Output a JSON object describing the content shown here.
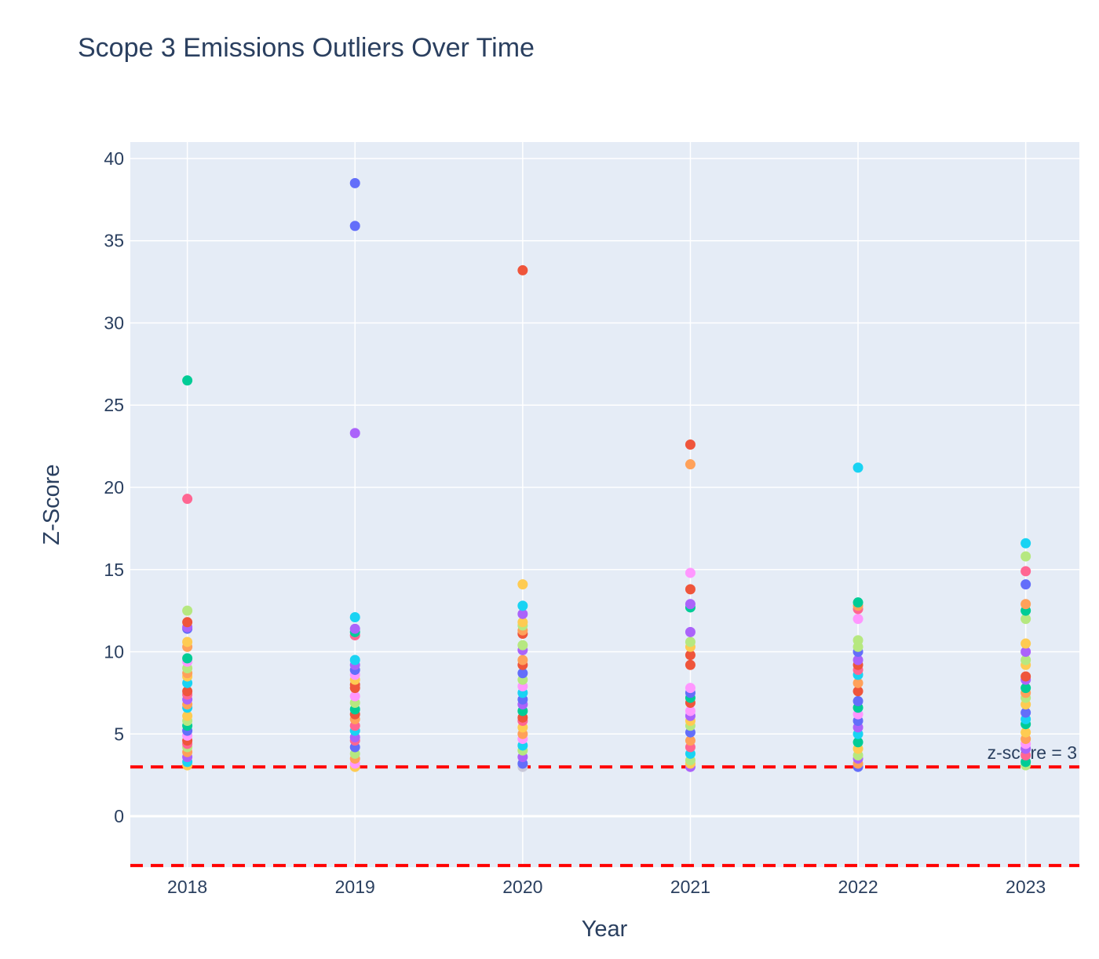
{
  "chart_data": {
    "type": "scatter",
    "title": "Scope 3 Emissions Outliers Over Time",
    "xlabel": "Year",
    "ylabel": "Z-Score",
    "x_categories": [
      "2018",
      "2019",
      "2020",
      "2021",
      "2022",
      "2023"
    ],
    "xlim": [
      2017.66,
      2023.32
    ],
    "ylim": [
      -3.1,
      41.0
    ],
    "y_ticks": [
      0,
      5,
      10,
      15,
      20,
      25,
      30,
      35,
      40
    ],
    "grid": true,
    "legend": "none",
    "plot_bg": "#e5ecf6",
    "grid_color": "#ffffff",
    "threshold_lines": [
      {
        "y": 3,
        "color": "#ff0000",
        "style": "dashed",
        "label": "z-score = 3"
      },
      {
        "y": -3,
        "color": "#ff0000",
        "style": "dashed",
        "label": ""
      }
    ],
    "palette": [
      "#636efa",
      "#EF553B",
      "#00cc96",
      "#ab63fa",
      "#FFA15A",
      "#19d3f3",
      "#FF6692",
      "#B6E880",
      "#FF97FF",
      "#FECB52"
    ],
    "points": [
      {
        "x": 2018,
        "y": 26.5,
        "c": "#00cc96"
      },
      {
        "x": 2018,
        "y": 19.3,
        "c": "#FF6692"
      },
      {
        "x": 2018,
        "y": 12.5,
        "c": "#B6E880"
      },
      {
        "x": 2018,
        "y": 11.8,
        "c": "#EF553B"
      },
      {
        "x": 2018,
        "y": 11.5,
        "c": "#ab63fa"
      },
      {
        "x": 2018,
        "y": 11.4,
        "c": "#636efa"
      },
      {
        "x": 2018,
        "y": 10.6,
        "c": "#FECB52"
      },
      {
        "x": 2018,
        "y": 10.3,
        "c": "#FFA15A"
      },
      {
        "x": 2018,
        "y": 9.6,
        "c": "#00cc96"
      },
      {
        "x": 2018,
        "y": 9.4,
        "c": "#FF97FF"
      },
      {
        "x": 2018,
        "y": 9.0,
        "c": "#B6E880"
      },
      {
        "x": 2018,
        "y": 8.7,
        "c": "#FFA15A"
      },
      {
        "x": 2018,
        "y": 8.5,
        "c": "#FECB52"
      },
      {
        "x": 2018,
        "y": 8.1,
        "c": "#19d3f3"
      },
      {
        "x": 2018,
        "y": 7.6,
        "c": "#EF553B"
      },
      {
        "x": 2018,
        "y": 7.4,
        "c": "#FF6692"
      },
      {
        "x": 2018,
        "y": 7.1,
        "c": "#ab63fa"
      },
      {
        "x": 2018,
        "y": 6.8,
        "c": "#FFA15A"
      },
      {
        "x": 2018,
        "y": 6.6,
        "c": "#19d3f3"
      },
      {
        "x": 2018,
        "y": 6.1,
        "c": "#FECB52"
      },
      {
        "x": 2018,
        "y": 5.8,
        "c": "#B6E880"
      },
      {
        "x": 2018,
        "y": 5.5,
        "c": "#00cc96"
      },
      {
        "x": 2018,
        "y": 5.2,
        "c": "#636efa"
      },
      {
        "x": 2018,
        "y": 4.9,
        "c": "#FF97FF"
      },
      {
        "x": 2018,
        "y": 4.6,
        "c": "#EF553B"
      },
      {
        "x": 2018,
        "y": 4.4,
        "c": "#FF6692"
      },
      {
        "x": 2018,
        "y": 4.2,
        "c": "#B6E880"
      },
      {
        "x": 2018,
        "y": 3.9,
        "c": "#FFA15A"
      },
      {
        "x": 2018,
        "y": 3.6,
        "c": "#ab63fa"
      },
      {
        "x": 2018,
        "y": 3.3,
        "c": "#19d3f3"
      },
      {
        "x": 2018,
        "y": 3.1,
        "c": "#FECB52"
      },
      {
        "x": 2019,
        "y": 38.5,
        "c": "#636efa"
      },
      {
        "x": 2019,
        "y": 35.9,
        "c": "#636efa"
      },
      {
        "x": 2019,
        "y": 23.3,
        "c": "#ab63fa"
      },
      {
        "x": 2019,
        "y": 12.1,
        "c": "#19d3f3"
      },
      {
        "x": 2019,
        "y": 11.4,
        "c": "#ab63fa"
      },
      {
        "x": 2019,
        "y": 11.2,
        "c": "#00cc96"
      },
      {
        "x": 2019,
        "y": 11.0,
        "c": "#FF6692"
      },
      {
        "x": 2019,
        "y": 9.5,
        "c": "#19d3f3"
      },
      {
        "x": 2019,
        "y": 9.2,
        "c": "#ab63fa"
      },
      {
        "x": 2019,
        "y": 8.9,
        "c": "#636efa"
      },
      {
        "x": 2019,
        "y": 8.6,
        "c": "#FF97FF"
      },
      {
        "x": 2019,
        "y": 8.3,
        "c": "#FECB52"
      },
      {
        "x": 2019,
        "y": 8.0,
        "c": "#EF553B"
      },
      {
        "x": 2019,
        "y": 7.8,
        "c": "#EF553B"
      },
      {
        "x": 2019,
        "y": 7.3,
        "c": "#FF97FF"
      },
      {
        "x": 2019,
        "y": 6.9,
        "c": "#B6E880"
      },
      {
        "x": 2019,
        "y": 6.5,
        "c": "#00cc96"
      },
      {
        "x": 2019,
        "y": 6.2,
        "c": "#EF553B"
      },
      {
        "x": 2019,
        "y": 5.9,
        "c": "#FFA15A"
      },
      {
        "x": 2019,
        "y": 5.5,
        "c": "#FF6692"
      },
      {
        "x": 2019,
        "y": 5.2,
        "c": "#19d3f3"
      },
      {
        "x": 2019,
        "y": 4.8,
        "c": "#ab63fa"
      },
      {
        "x": 2019,
        "y": 4.6,
        "c": "#FF6692"
      },
      {
        "x": 2019,
        "y": 4.2,
        "c": "#636efa"
      },
      {
        "x": 2019,
        "y": 3.8,
        "c": "#B6E880"
      },
      {
        "x": 2019,
        "y": 3.5,
        "c": "#FFA15A"
      },
      {
        "x": 2019,
        "y": 3.2,
        "c": "#FF97FF"
      },
      {
        "x": 2019,
        "y": 3.0,
        "c": "#FECB52"
      },
      {
        "x": 2020,
        "y": 33.2,
        "c": "#EF553B"
      },
      {
        "x": 2020,
        "y": 14.1,
        "c": "#FECB52"
      },
      {
        "x": 2020,
        "y": 12.8,
        "c": "#19d3f3"
      },
      {
        "x": 2020,
        "y": 12.3,
        "c": "#ab63fa"
      },
      {
        "x": 2020,
        "y": 11.8,
        "c": "#FECB52"
      },
      {
        "x": 2020,
        "y": 11.6,
        "c": "#B6E880"
      },
      {
        "x": 2020,
        "y": 11.3,
        "c": "#FFA15A"
      },
      {
        "x": 2020,
        "y": 11.1,
        "c": "#EF553B"
      },
      {
        "x": 2020,
        "y": 10.4,
        "c": "#B6E880"
      },
      {
        "x": 2020,
        "y": 10.1,
        "c": "#ab63fa"
      },
      {
        "x": 2020,
        "y": 9.5,
        "c": "#FFA15A"
      },
      {
        "x": 2020,
        "y": 9.2,
        "c": "#EF553B"
      },
      {
        "x": 2020,
        "y": 8.7,
        "c": "#636efa"
      },
      {
        "x": 2020,
        "y": 8.3,
        "c": "#B6E880"
      },
      {
        "x": 2020,
        "y": 7.9,
        "c": "#FF97FF"
      },
      {
        "x": 2020,
        "y": 7.5,
        "c": "#19d3f3"
      },
      {
        "x": 2020,
        "y": 7.1,
        "c": "#636efa"
      },
      {
        "x": 2020,
        "y": 6.8,
        "c": "#ab63fa"
      },
      {
        "x": 2020,
        "y": 6.4,
        "c": "#00cc96"
      },
      {
        "x": 2020,
        "y": 6.0,
        "c": "#EF553B"
      },
      {
        "x": 2020,
        "y": 5.8,
        "c": "#FF6692"
      },
      {
        "x": 2020,
        "y": 5.4,
        "c": "#FECB52"
      },
      {
        "x": 2020,
        "y": 5.0,
        "c": "#FFA15A"
      },
      {
        "x": 2020,
        "y": 4.7,
        "c": "#FF97FF"
      },
      {
        "x": 2020,
        "y": 4.3,
        "c": "#19d3f3"
      },
      {
        "x": 2020,
        "y": 4.0,
        "c": "#B6E880"
      },
      {
        "x": 2020,
        "y": 3.6,
        "c": "#ab63fa"
      },
      {
        "x": 2020,
        "y": 3.2,
        "c": "#636efa"
      },
      {
        "x": 2020,
        "y": 3.0,
        "c": "#c8c8d8"
      },
      {
        "x": 2021,
        "y": 22.6,
        "c": "#EF553B"
      },
      {
        "x": 2021,
        "y": 21.4,
        "c": "#FFA15A"
      },
      {
        "x": 2021,
        "y": 14.8,
        "c": "#FF97FF"
      },
      {
        "x": 2021,
        "y": 13.8,
        "c": "#EF553B"
      },
      {
        "x": 2021,
        "y": 12.9,
        "c": "#ab63fa"
      },
      {
        "x": 2021,
        "y": 12.7,
        "c": "#00cc96"
      },
      {
        "x": 2021,
        "y": 11.2,
        "c": "#ab63fa"
      },
      {
        "x": 2021,
        "y": 10.6,
        "c": "#B6E880"
      },
      {
        "x": 2021,
        "y": 10.3,
        "c": "#FECB52"
      },
      {
        "x": 2021,
        "y": 9.8,
        "c": "#EF553B"
      },
      {
        "x": 2021,
        "y": 9.2,
        "c": "#EF553B"
      },
      {
        "x": 2021,
        "y": 7.8,
        "c": "#FF97FF"
      },
      {
        "x": 2021,
        "y": 7.5,
        "c": "#636efa"
      },
      {
        "x": 2021,
        "y": 7.2,
        "c": "#00cc96"
      },
      {
        "x": 2021,
        "y": 6.9,
        "c": "#EF553B"
      },
      {
        "x": 2021,
        "y": 6.4,
        "c": "#FF97FF"
      },
      {
        "x": 2021,
        "y": 6.1,
        "c": "#ab63fa"
      },
      {
        "x": 2021,
        "y": 5.8,
        "c": "#FECB52"
      },
      {
        "x": 2021,
        "y": 5.5,
        "c": "#B6E880"
      },
      {
        "x": 2021,
        "y": 5.1,
        "c": "#636efa"
      },
      {
        "x": 2021,
        "y": 4.6,
        "c": "#FFA15A"
      },
      {
        "x": 2021,
        "y": 4.2,
        "c": "#FF6692"
      },
      {
        "x": 2021,
        "y": 3.8,
        "c": "#19d3f3"
      },
      {
        "x": 2021,
        "y": 3.4,
        "c": "#B6E880"
      },
      {
        "x": 2021,
        "y": 3.2,
        "c": "#FECB52"
      },
      {
        "x": 2021,
        "y": 3.0,
        "c": "#ab63fa"
      },
      {
        "x": 2022,
        "y": 21.2,
        "c": "#19d3f3"
      },
      {
        "x": 2022,
        "y": 13.0,
        "c": "#00cc96"
      },
      {
        "x": 2022,
        "y": 12.8,
        "c": "#FFA15A"
      },
      {
        "x": 2022,
        "y": 12.6,
        "c": "#FF6692"
      },
      {
        "x": 2022,
        "y": 12.0,
        "c": "#FF97FF"
      },
      {
        "x": 2022,
        "y": 10.7,
        "c": "#B6E880"
      },
      {
        "x": 2022,
        "y": 10.3,
        "c": "#B6E880"
      },
      {
        "x": 2022,
        "y": 10.0,
        "c": "#636efa"
      },
      {
        "x": 2022,
        "y": 9.5,
        "c": "#ab63fa"
      },
      {
        "x": 2022,
        "y": 9.2,
        "c": "#EF553B"
      },
      {
        "x": 2022,
        "y": 8.9,
        "c": "#FF6692"
      },
      {
        "x": 2022,
        "y": 8.6,
        "c": "#19d3f3"
      },
      {
        "x": 2022,
        "y": 8.1,
        "c": "#FFA15A"
      },
      {
        "x": 2022,
        "y": 7.6,
        "c": "#EF553B"
      },
      {
        "x": 2022,
        "y": 7.0,
        "c": "#636efa"
      },
      {
        "x": 2022,
        "y": 6.6,
        "c": "#00cc96"
      },
      {
        "x": 2022,
        "y": 6.2,
        "c": "#FF97FF"
      },
      {
        "x": 2022,
        "y": 5.8,
        "c": "#636efa"
      },
      {
        "x": 2022,
        "y": 5.4,
        "c": "#ab63fa"
      },
      {
        "x": 2022,
        "y": 5.0,
        "c": "#19d3f3"
      },
      {
        "x": 2022,
        "y": 4.5,
        "c": "#00cc96"
      },
      {
        "x": 2022,
        "y": 4.1,
        "c": "#FECB52"
      },
      {
        "x": 2022,
        "y": 3.7,
        "c": "#B6E880"
      },
      {
        "x": 2022,
        "y": 3.5,
        "c": "#ab63fa"
      },
      {
        "x": 2022,
        "y": 3.2,
        "c": "#FFA15A"
      },
      {
        "x": 2022,
        "y": 3.0,
        "c": "#636efa"
      },
      {
        "x": 2023,
        "y": 16.6,
        "c": "#19d3f3"
      },
      {
        "x": 2023,
        "y": 15.8,
        "c": "#B6E880"
      },
      {
        "x": 2023,
        "y": 14.9,
        "c": "#FF6692"
      },
      {
        "x": 2023,
        "y": 14.1,
        "c": "#636efa"
      },
      {
        "x": 2023,
        "y": 12.9,
        "c": "#FFA15A"
      },
      {
        "x": 2023,
        "y": 12.5,
        "c": "#00cc96"
      },
      {
        "x": 2023,
        "y": 12.0,
        "c": "#B6E880"
      },
      {
        "x": 2023,
        "y": 10.5,
        "c": "#FECB52"
      },
      {
        "x": 2023,
        "y": 10.0,
        "c": "#ab63fa"
      },
      {
        "x": 2023,
        "y": 9.5,
        "c": "#B6E880"
      },
      {
        "x": 2023,
        "y": 9.2,
        "c": "#FECB52"
      },
      {
        "x": 2023,
        "y": 8.5,
        "c": "#EF553B"
      },
      {
        "x": 2023,
        "y": 8.3,
        "c": "#ab63fa"
      },
      {
        "x": 2023,
        "y": 7.8,
        "c": "#00cc96"
      },
      {
        "x": 2023,
        "y": 7.5,
        "c": "#FFA15A"
      },
      {
        "x": 2023,
        "y": 7.2,
        "c": "#B6E880"
      },
      {
        "x": 2023,
        "y": 6.8,
        "c": "#FECB52"
      },
      {
        "x": 2023,
        "y": 6.3,
        "c": "#636efa"
      },
      {
        "x": 2023,
        "y": 5.9,
        "c": "#19d3f3"
      },
      {
        "x": 2023,
        "y": 5.6,
        "c": "#00cc96"
      },
      {
        "x": 2023,
        "y": 5.1,
        "c": "#FECB52"
      },
      {
        "x": 2023,
        "y": 4.7,
        "c": "#FFA15A"
      },
      {
        "x": 2023,
        "y": 4.4,
        "c": "#FF97FF"
      },
      {
        "x": 2023,
        "y": 4.1,
        "c": "#ab63fa"
      },
      {
        "x": 2023,
        "y": 3.7,
        "c": "#FF6692"
      },
      {
        "x": 2023,
        "y": 3.3,
        "c": "#00cc96"
      },
      {
        "x": 2023,
        "y": 3.1,
        "c": "#B6E880"
      }
    ]
  }
}
